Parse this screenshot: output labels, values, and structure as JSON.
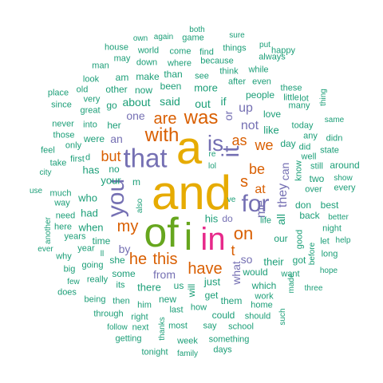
{
  "palette": {
    "teal": "#1b9e77",
    "orange": "#d95f02",
    "purple": "#7570b3",
    "pink": "#e7298a",
    "green": "#66a61e",
    "gold": "#e6ab02"
  },
  "words": [
    {
      "text": "and",
      "color": "gold",
      "rotated": false
    },
    {
      "text": "a",
      "color": "gold",
      "rotated": false
    },
    {
      "text": "of",
      "color": "green",
      "rotated": false
    },
    {
      "text": "i",
      "color": "green",
      "rotated": false
    },
    {
      "text": "in",
      "color": "pink",
      "rotated": false
    },
    {
      "text": "that",
      "color": "purple",
      "rotated": false
    },
    {
      "text": "you",
      "color": "purple",
      "rotated": true
    },
    {
      "text": "it",
      "color": "purple",
      "rotated": true
    },
    {
      "text": "for",
      "color": "purple",
      "rotated": false
    },
    {
      "text": "is",
      "color": "purple",
      "rotated": false
    },
    {
      "text": "with",
      "color": "orange",
      "rotated": false
    },
    {
      "text": "was",
      "color": "orange",
      "rotated": false
    },
    {
      "text": "are",
      "color": "orange",
      "rotated": false
    },
    {
      "text": "on",
      "color": "orange",
      "rotated": false
    },
    {
      "text": "my",
      "color": "orange",
      "rotated": false
    },
    {
      "text": "this",
      "color": "orange",
      "rotated": false
    },
    {
      "text": "have",
      "color": "orange",
      "rotated": false
    },
    {
      "text": "he",
      "color": "orange",
      "rotated": false
    },
    {
      "text": "but",
      "color": "orange",
      "rotated": false
    },
    {
      "text": "be",
      "color": "orange",
      "rotated": false
    },
    {
      "text": "we",
      "color": "orange",
      "rotated": false
    },
    {
      "text": "as",
      "color": "orange",
      "rotated": false
    },
    {
      "text": "s",
      "color": "orange",
      "rotated": false
    },
    {
      "text": "at",
      "color": "orange",
      "rotated": false
    },
    {
      "text": "t",
      "color": "orange",
      "rotated": false
    },
    {
      "text": "me",
      "color": "purple",
      "rotated": true
    },
    {
      "text": "they",
      "color": "purple",
      "rotated": true
    },
    {
      "text": "can",
      "color": "purple",
      "rotated": true
    },
    {
      "text": "what",
      "color": "purple",
      "rotated": true
    },
    {
      "text": "or",
      "color": "purple",
      "rotated": true
    },
    {
      "text": "not",
      "color": "purple",
      "rotated": false
    },
    {
      "text": "up",
      "color": "purple",
      "rotated": false
    },
    {
      "text": "from",
      "color": "purple",
      "rotated": false
    },
    {
      "text": "so",
      "color": "purple",
      "rotated": false
    },
    {
      "text": "one",
      "color": "purple",
      "rotated": false
    },
    {
      "text": "an",
      "color": "purple",
      "rotated": false
    },
    {
      "text": "by",
      "color": "purple",
      "rotated": false
    },
    {
      "text": "do",
      "color": "purple",
      "rotated": false
    },
    {
      "text": "all",
      "color": "teal",
      "rotated": true
    },
    {
      "text": "about",
      "color": "teal",
      "rotated": false
    },
    {
      "text": "said",
      "color": "teal",
      "rotated": false
    },
    {
      "text": "out",
      "color": "teal",
      "rotated": false
    },
    {
      "text": "if",
      "color": "teal",
      "rotated": false
    },
    {
      "text": "like",
      "color": "teal",
      "rotated": false
    },
    {
      "text": "people",
      "color": "teal",
      "rotated": false
    },
    {
      "text": "more",
      "color": "teal",
      "rotated": false
    },
    {
      "text": "has",
      "color": "teal",
      "rotated": false
    },
    {
      "text": "your",
      "color": "teal",
      "rotated": false
    },
    {
      "text": "when",
      "color": "teal",
      "rotated": false
    },
    {
      "text": "who",
      "color": "teal",
      "rotated": false
    },
    {
      "text": "had",
      "color": "teal",
      "rotated": false
    },
    {
      "text": "there",
      "color": "teal",
      "rotated": false
    },
    {
      "text": "his",
      "color": "teal",
      "rotated": false
    },
    {
      "text": "just",
      "color": "teal",
      "rotated": false
    },
    {
      "text": "their",
      "color": "teal",
      "rotated": false
    },
    {
      "text": "would",
      "color": "teal",
      "rotated": false
    },
    {
      "text": "our",
      "color": "teal",
      "rotated": false
    },
    {
      "text": "get",
      "color": "teal",
      "rotated": false
    },
    {
      "text": "them",
      "color": "teal",
      "rotated": false
    },
    {
      "text": "she",
      "color": "teal",
      "rotated": false
    },
    {
      "text": "her",
      "color": "teal",
      "rotated": false
    },
    {
      "text": "were",
      "color": "teal",
      "rotated": false
    },
    {
      "text": "no",
      "color": "teal",
      "rotated": false
    },
    {
      "text": "m",
      "color": "teal",
      "rotated": false
    },
    {
      "text": "time",
      "color": "teal",
      "rotated": false
    },
    {
      "text": "new",
      "color": "teal",
      "rotated": false
    },
    {
      "text": "some",
      "color": "teal",
      "rotated": false
    },
    {
      "text": "us",
      "color": "teal",
      "rotated": false
    },
    {
      "text": "will",
      "color": "teal",
      "rotated": true
    },
    {
      "text": "love",
      "color": "teal",
      "rotated": false
    },
    {
      "text": "day",
      "color": "teal",
      "rotated": false
    },
    {
      "text": "don",
      "color": "teal",
      "rotated": false
    },
    {
      "text": "back",
      "color": "teal",
      "rotated": false
    },
    {
      "text": "got",
      "color": "teal",
      "rotated": false
    },
    {
      "text": "been",
      "color": "teal",
      "rotated": false
    },
    {
      "text": "now",
      "color": "teal",
      "rotated": false
    },
    {
      "text": "than",
      "color": "teal",
      "rotated": false
    },
    {
      "text": "make",
      "color": "teal",
      "rotated": false
    },
    {
      "text": "am",
      "color": "teal",
      "rotated": false
    },
    {
      "text": "other",
      "color": "teal",
      "rotated": false
    },
    {
      "text": "go",
      "color": "teal",
      "rotated": false
    },
    {
      "text": "great",
      "color": "teal",
      "rotated": false
    },
    {
      "text": "very",
      "color": "teal",
      "rotated": false
    },
    {
      "text": "look",
      "color": "teal",
      "rotated": false
    },
    {
      "text": "old",
      "color": "teal",
      "rotated": false
    },
    {
      "text": "man",
      "color": "teal",
      "rotated": false
    },
    {
      "text": "house",
      "color": "teal",
      "rotated": false
    },
    {
      "text": "may",
      "color": "teal",
      "rotated": false
    },
    {
      "text": "world",
      "color": "teal",
      "rotated": false
    },
    {
      "text": "own",
      "color": "teal",
      "rotated": false
    },
    {
      "text": "again",
      "color": "teal",
      "rotated": false
    },
    {
      "text": "both",
      "color": "teal",
      "rotated": false
    },
    {
      "text": "game",
      "color": "teal",
      "rotated": false
    },
    {
      "text": "come",
      "color": "teal",
      "rotated": false
    },
    {
      "text": "find",
      "color": "teal",
      "rotated": false
    },
    {
      "text": "sure",
      "color": "teal",
      "rotated": false
    },
    {
      "text": "things",
      "color": "teal",
      "rotated": false
    },
    {
      "text": "put",
      "color": "teal",
      "rotated": false
    },
    {
      "text": "happy",
      "color": "teal",
      "rotated": false
    },
    {
      "text": "always",
      "color": "teal",
      "rotated": false
    },
    {
      "text": "down",
      "color": "teal",
      "rotated": false
    },
    {
      "text": "where",
      "color": "teal",
      "rotated": false
    },
    {
      "text": "because",
      "color": "teal",
      "rotated": false
    },
    {
      "text": "see",
      "color": "teal",
      "rotated": false
    },
    {
      "text": "think",
      "color": "teal",
      "rotated": false
    },
    {
      "text": "while",
      "color": "teal",
      "rotated": false
    },
    {
      "text": "after",
      "color": "teal",
      "rotated": false
    },
    {
      "text": "even",
      "color": "teal",
      "rotated": false
    },
    {
      "text": "these",
      "color": "teal",
      "rotated": false
    },
    {
      "text": "little",
      "color": "teal",
      "rotated": false
    },
    {
      "text": "lot",
      "color": "teal",
      "rotated": false
    },
    {
      "text": "many",
      "color": "teal",
      "rotated": false
    },
    {
      "text": "thing",
      "color": "teal",
      "rotated": true
    },
    {
      "text": "place",
      "color": "teal",
      "rotated": false
    },
    {
      "text": "since",
      "color": "teal",
      "rotated": false
    },
    {
      "text": "never",
      "color": "teal",
      "rotated": false
    },
    {
      "text": "those",
      "color": "teal",
      "rotated": false
    },
    {
      "text": "feel",
      "color": "teal",
      "rotated": false
    },
    {
      "text": "take",
      "color": "teal",
      "rotated": false
    },
    {
      "text": "city",
      "color": "teal",
      "rotated": false
    },
    {
      "text": "use",
      "color": "teal",
      "rotated": false
    },
    {
      "text": "only",
      "color": "teal",
      "rotated": false
    },
    {
      "text": "first",
      "color": "teal",
      "rotated": false
    },
    {
      "text": "d",
      "color": "teal",
      "rotated": false
    },
    {
      "text": "into",
      "color": "teal",
      "rotated": false
    },
    {
      "text": "much",
      "color": "teal",
      "rotated": false
    },
    {
      "text": "way",
      "color": "teal",
      "rotated": false
    },
    {
      "text": "need",
      "color": "teal",
      "rotated": false
    },
    {
      "text": "here",
      "color": "teal",
      "rotated": false
    },
    {
      "text": "another",
      "color": "teal",
      "rotated": true
    },
    {
      "text": "ever",
      "color": "teal",
      "rotated": false
    },
    {
      "text": "why",
      "color": "teal",
      "rotated": false
    },
    {
      "text": "years",
      "color": "teal",
      "rotated": false
    },
    {
      "text": "year",
      "color": "teal",
      "rotated": false
    },
    {
      "text": "big",
      "color": "teal",
      "rotated": false
    },
    {
      "text": "few",
      "color": "teal",
      "rotated": false
    },
    {
      "text": "does",
      "color": "teal",
      "rotated": false
    },
    {
      "text": "ll",
      "color": "teal",
      "rotated": false
    },
    {
      "text": "going",
      "color": "teal",
      "rotated": false
    },
    {
      "text": "really",
      "color": "teal",
      "rotated": false
    },
    {
      "text": "its",
      "color": "teal",
      "rotated": false
    },
    {
      "text": "being",
      "color": "teal",
      "rotated": false
    },
    {
      "text": "then",
      "color": "teal",
      "rotated": false
    },
    {
      "text": "him",
      "color": "teal",
      "rotated": false
    },
    {
      "text": "through",
      "color": "teal",
      "rotated": false
    },
    {
      "text": "right",
      "color": "teal",
      "rotated": false
    },
    {
      "text": "follow",
      "color": "teal",
      "rotated": false
    },
    {
      "text": "next",
      "color": "teal",
      "rotated": false
    },
    {
      "text": "getting",
      "color": "teal",
      "rotated": false
    },
    {
      "text": "tonight",
      "color": "teal",
      "rotated": false
    },
    {
      "text": "thanks",
      "color": "teal",
      "rotated": true
    },
    {
      "text": "week",
      "color": "teal",
      "rotated": false
    },
    {
      "text": "family",
      "color": "teal",
      "rotated": false
    },
    {
      "text": "most",
      "color": "teal",
      "rotated": false
    },
    {
      "text": "last",
      "color": "teal",
      "rotated": false
    },
    {
      "text": "how",
      "color": "teal",
      "rotated": false
    },
    {
      "text": "could",
      "color": "teal",
      "rotated": false
    },
    {
      "text": "say",
      "color": "teal",
      "rotated": false
    },
    {
      "text": "school",
      "color": "teal",
      "rotated": false
    },
    {
      "text": "something",
      "color": "teal",
      "rotated": false
    },
    {
      "text": "days",
      "color": "teal",
      "rotated": false
    },
    {
      "text": "should",
      "color": "teal",
      "rotated": false
    },
    {
      "text": "home",
      "color": "teal",
      "rotated": false
    },
    {
      "text": "work",
      "color": "teal",
      "rotated": false
    },
    {
      "text": "which",
      "color": "teal",
      "rotated": false
    },
    {
      "text": "such",
      "color": "teal",
      "rotated": true
    },
    {
      "text": "made",
      "color": "teal",
      "rotated": true
    },
    {
      "text": "want",
      "color": "teal",
      "rotated": false
    },
    {
      "text": "three",
      "color": "teal",
      "rotated": false
    },
    {
      "text": "hope",
      "color": "teal",
      "rotated": false
    },
    {
      "text": "before",
      "color": "teal",
      "rotated": true
    },
    {
      "text": "good",
      "color": "teal",
      "rotated": true
    },
    {
      "text": "long",
      "color": "teal",
      "rotated": false
    },
    {
      "text": "help",
      "color": "teal",
      "rotated": false
    },
    {
      "text": "better",
      "color": "teal",
      "rotated": false
    },
    {
      "text": "let",
      "color": "teal",
      "rotated": false
    },
    {
      "text": "night",
      "color": "teal",
      "rotated": false
    },
    {
      "text": "best",
      "color": "teal",
      "rotated": false
    },
    {
      "text": "life",
      "color": "teal",
      "rotated": false
    },
    {
      "text": "over",
      "color": "teal",
      "rotated": false
    },
    {
      "text": "every",
      "color": "teal",
      "rotated": false
    },
    {
      "text": "show",
      "color": "teal",
      "rotated": false
    },
    {
      "text": "still",
      "color": "teal",
      "rotated": false
    },
    {
      "text": "two",
      "color": "teal",
      "rotated": false
    },
    {
      "text": "around",
      "color": "teal",
      "rotated": false
    },
    {
      "text": "well",
      "color": "teal",
      "rotated": false
    },
    {
      "text": "know",
      "color": "teal",
      "rotated": true
    },
    {
      "text": "state",
      "color": "teal",
      "rotated": false
    },
    {
      "text": "didn",
      "color": "teal",
      "rotated": false
    },
    {
      "text": "any",
      "color": "teal",
      "rotated": false
    },
    {
      "text": "same",
      "color": "teal",
      "rotated": false
    },
    {
      "text": "today",
      "color": "teal",
      "rotated": false
    },
    {
      "text": "did",
      "color": "teal",
      "rotated": false
    },
    {
      "text": "re",
      "color": "teal",
      "rotated": false
    },
    {
      "text": "lol",
      "color": "teal",
      "rotated": false
    },
    {
      "text": "ve",
      "color": "teal",
      "rotated": false
    },
    {
      "text": "also",
      "color": "teal",
      "rotated": true
    }
  ]
}
